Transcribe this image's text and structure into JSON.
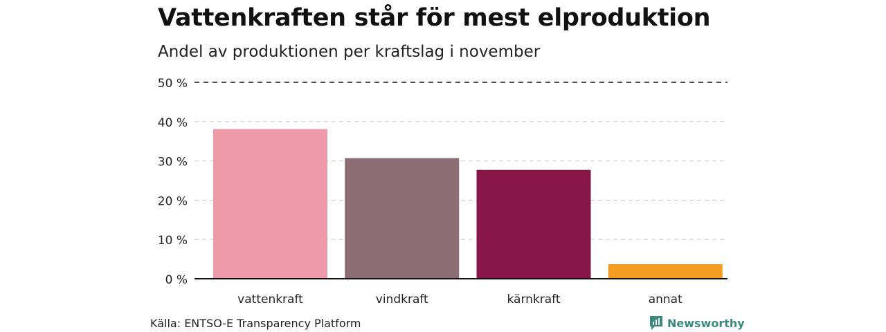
{
  "header": {
    "title": "Vattenkraften står för mest elproduktion",
    "subtitle": "Andel av produktionen per kraftslag i november"
  },
  "footer": {
    "source": "Källa: ENTSO-E Transparency Platform",
    "brand": "Newsworthy"
  },
  "colors": {
    "brand": "#3a8a7e",
    "axis": "#111111",
    "grid": "#d4d4d4"
  },
  "icons": {
    "brand_logo": "newsworthy-chart-icon"
  },
  "chart_data": {
    "type": "bar",
    "title": "Vattenkraften står för mest elproduktion",
    "subtitle": "Andel av produktionen per kraftslag i november",
    "categories": [
      "vattenkraft",
      "vindkraft",
      "kärnkraft",
      "annat"
    ],
    "values": [
      38.1,
      30.7,
      27.7,
      3.7
    ],
    "colors": [
      "#ee9aa8",
      "#8b6d74",
      "#861748",
      "#f39c1f"
    ],
    "ylim": [
      0,
      50
    ],
    "yticks": [
      0,
      10,
      20,
      30,
      40,
      50
    ],
    "ytick_labels": [
      "0 %",
      "10 %",
      "20 %",
      "30 %",
      "40 %",
      "50 %"
    ],
    "grid": true,
    "xlabel": "",
    "ylabel": ""
  }
}
